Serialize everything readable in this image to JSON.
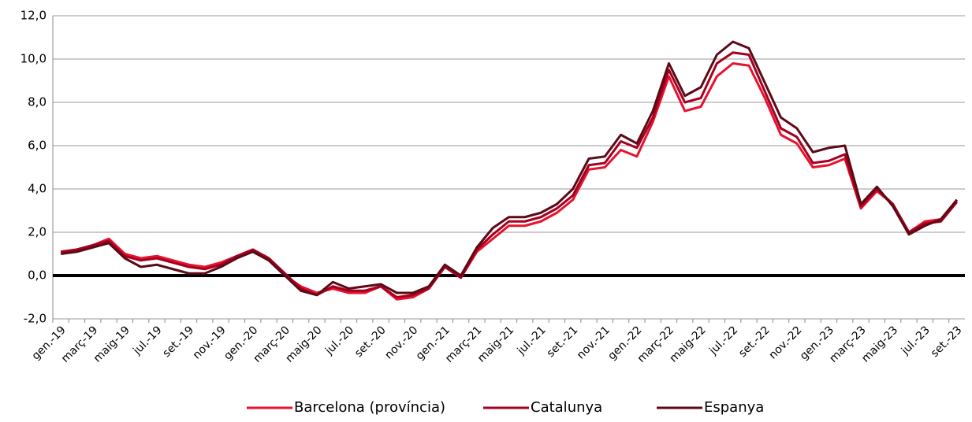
{
  "chart_data": {
    "type": "line",
    "categories": [
      "gen.-19",
      null,
      "març-19",
      null,
      "maig-19",
      null,
      "jul.-19",
      null,
      "set.-19",
      null,
      "nov.-19",
      null,
      "gen.-20",
      null,
      "març-20",
      null,
      "maig-20",
      null,
      "jul.-20",
      null,
      "set.-20",
      null,
      "nov.-20",
      null,
      "gen.-21",
      null,
      "març-21",
      null,
      "maig-21",
      null,
      "jul.-21",
      null,
      "set.-21",
      null,
      "nov.-21",
      null,
      "gen.-22",
      null,
      "març-22",
      null,
      "maig-22",
      null,
      "jul.-22",
      null,
      "set.-22",
      null,
      "nov.-22",
      null,
      "gen.-23",
      null,
      "març-23",
      null,
      "maig-23",
      null,
      "jul.-23",
      null,
      "set.-23"
    ],
    "series": [
      {
        "name": "Barcelona (província)",
        "color": "#e8122d",
        "values": [
          1.1,
          1.2,
          1.4,
          1.7,
          1.0,
          0.8,
          0.9,
          0.7,
          0.5,
          0.4,
          0.6,
          0.9,
          1.2,
          0.7,
          0.0,
          -0.5,
          -0.8,
          -0.6,
          -0.8,
          -0.8,
          -0.5,
          -1.1,
          -1.0,
          -0.6,
          0.4,
          -0.1,
          1.1,
          1.7,
          2.3,
          2.3,
          2.5,
          2.9,
          3.5,
          4.9,
          5.0,
          5.8,
          5.5,
          7.1,
          9.2,
          7.6,
          7.8,
          9.2,
          9.8,
          9.7,
          8.2,
          6.5,
          6.1,
          5.0,
          5.1,
          5.4,
          3.1,
          3.9,
          3.3,
          2.0,
          2.5,
          2.6,
          3.5
        ]
      },
      {
        "name": "Catalunya",
        "color": "#a50021",
        "values": [
          1.1,
          1.2,
          1.4,
          1.6,
          0.9,
          0.7,
          0.8,
          0.6,
          0.4,
          0.3,
          0.5,
          0.9,
          1.2,
          0.8,
          0.1,
          -0.6,
          -0.9,
          -0.5,
          -0.7,
          -0.7,
          -0.5,
          -1.0,
          -0.9,
          -0.6,
          0.4,
          -0.1,
          1.2,
          1.9,
          2.5,
          2.5,
          2.7,
          3.1,
          3.7,
          5.1,
          5.2,
          6.2,
          5.9,
          7.3,
          9.5,
          8.0,
          8.2,
          9.8,
          10.3,
          10.2,
          8.5,
          6.8,
          6.4,
          5.2,
          5.3,
          5.6,
          3.2,
          4.0,
          3.3,
          2.0,
          2.4,
          2.5,
          3.4
        ]
      },
      {
        "name": "Espanya",
        "color": "#5c0a16",
        "values": [
          1.0,
          1.1,
          1.3,
          1.5,
          0.8,
          0.4,
          0.5,
          0.3,
          0.1,
          0.1,
          0.4,
          0.8,
          1.1,
          0.7,
          0.0,
          -0.7,
          -0.9,
          -0.3,
          -0.6,
          -0.5,
          -0.4,
          -0.8,
          -0.8,
          -0.5,
          0.5,
          0.0,
          1.3,
          2.2,
          2.7,
          2.7,
          2.9,
          3.3,
          4.0,
          5.4,
          5.5,
          6.5,
          6.1,
          7.6,
          9.8,
          8.3,
          8.7,
          10.2,
          10.8,
          10.5,
          8.9,
          7.3,
          6.8,
          5.7,
          5.9,
          6.0,
          3.3,
          4.1,
          3.2,
          1.9,
          2.3,
          2.6,
          3.5
        ]
      }
    ],
    "ylim": [
      -2,
      12
    ],
    "yticks": [
      {
        "value": -2,
        "label": "-2,0"
      },
      {
        "value": 0,
        "label": "0,0"
      },
      {
        "value": 2,
        "label": "2,0"
      },
      {
        "value": 4,
        "label": "4,0"
      },
      {
        "value": 6,
        "label": "6,0"
      },
      {
        "value": 8,
        "label": "8,0"
      },
      {
        "value": 10,
        "label": "10,0"
      },
      {
        "value": 12,
        "label": "12,0"
      }
    ],
    "grid": true,
    "legend": "bottom"
  }
}
